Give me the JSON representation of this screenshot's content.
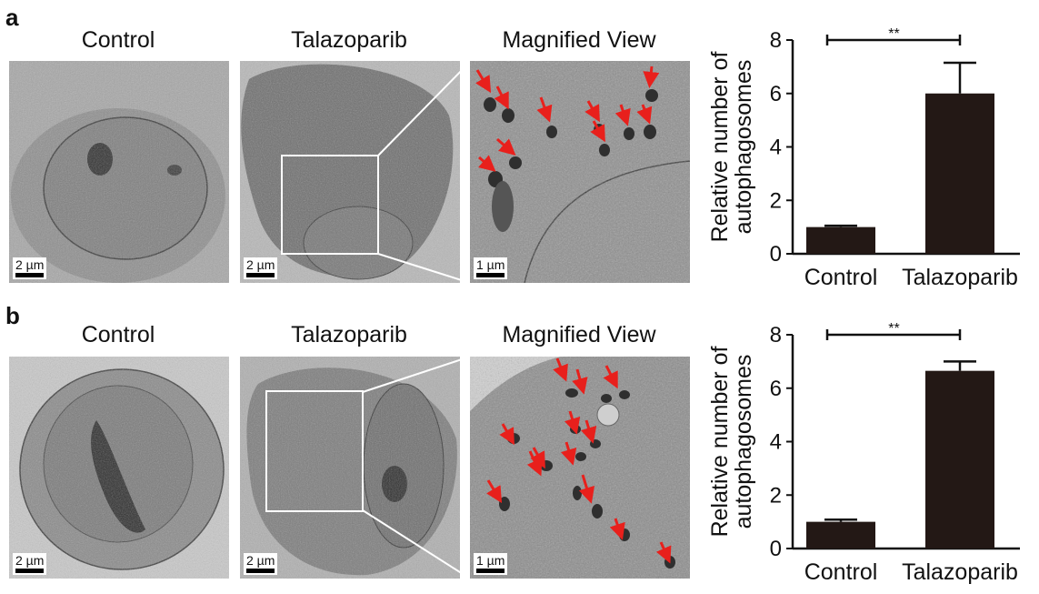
{
  "panels": [
    {
      "letter": "a",
      "titles": [
        "Control",
        "Talazoparib",
        "Magnified View"
      ],
      "scale_labels": [
        "2 µm",
        "2 µm",
        "1 µm"
      ],
      "chart_data": {
        "type": "bar",
        "categories": [
          "Control",
          "Talazoparib"
        ],
        "values": [
          1.0,
          6.0
        ],
        "errors": [
          0.05,
          1.15
        ],
        "ylabel_line1": "Relative number of",
        "ylabel_line2": "autophagosomes",
        "ylim": [
          0,
          8
        ],
        "yticks": [
          0,
          2,
          4,
          6,
          8
        ],
        "significance": "**",
        "bar_color": "#231815"
      }
    },
    {
      "letter": "b",
      "titles": [
        "Control",
        "Talazoparib",
        "Magnified View"
      ],
      "scale_labels": [
        "2 µm",
        "2 µm",
        "1 µm"
      ],
      "chart_data": {
        "type": "bar",
        "categories": [
          "Control",
          "Talazoparib"
        ],
        "values": [
          1.0,
          6.65
        ],
        "errors": [
          0.08,
          0.35
        ],
        "ylabel_line1": "Relative number of",
        "ylabel_line2": "autophagosomes",
        "ylim": [
          0,
          8
        ],
        "yticks": [
          0,
          2,
          4,
          6,
          8
        ],
        "significance": "**",
        "bar_color": "#231815"
      }
    }
  ],
  "colors": {
    "arrow": "#e8201c",
    "inset_box": "#ffffff"
  }
}
